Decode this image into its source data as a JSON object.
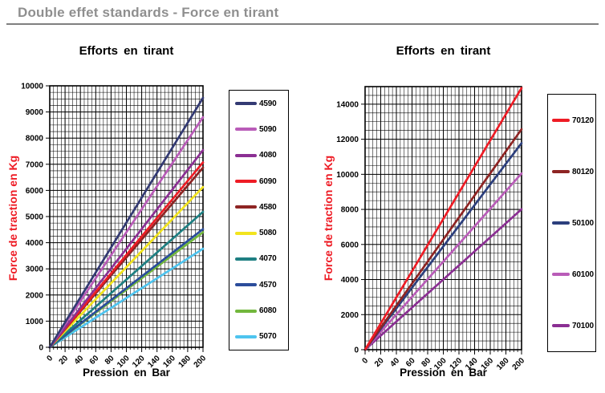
{
  "page_title": "Double effet standards - Force en tirant",
  "colors": {
    "header_text": "#8f8f8f",
    "header_rule": "#7f7f7f",
    "y_axis_title": "#ee1c25",
    "grid": "#000000"
  },
  "chart_data": [
    {
      "type": "line",
      "title": "Efforts en tirant",
      "xlabel": "Pression en Bar",
      "ylabel": "Force de traction en Kg",
      "x": [
        0,
        200
      ],
      "xlim": [
        0,
        200
      ],
      "ylim": [
        0,
        10000
      ],
      "x_ticks": [
        0,
        20,
        40,
        60,
        80,
        100,
        120,
        140,
        160,
        180,
        200
      ],
      "y_ticks": [
        0,
        1000,
        2000,
        3000,
        4000,
        5000,
        6000,
        7000,
        8000,
        9000,
        10000
      ],
      "x_minor_step": 5,
      "y_minor_step": 250,
      "grid": true,
      "legend_position": "right",
      "series": [
        {
          "name": "4590",
          "color": "#333a73",
          "values": [
            0,
            9540
          ]
        },
        {
          "name": "5090",
          "color": "#b95cb8",
          "values": [
            0,
            8800
          ]
        },
        {
          "name": "4080",
          "color": "#8b2f93",
          "values": [
            0,
            7540
          ]
        },
        {
          "name": "6090",
          "color": "#ee1c25",
          "values": [
            0,
            7070
          ]
        },
        {
          "name": "4580",
          "color": "#8e2423",
          "values": [
            0,
            6870
          ]
        },
        {
          "name": "5080",
          "color": "#f2e41e",
          "values": [
            0,
            6130
          ]
        },
        {
          "name": "4070",
          "color": "#1e7f82",
          "values": [
            0,
            5180
          ]
        },
        {
          "name": "4570",
          "color": "#2b4d9b",
          "values": [
            0,
            4520
          ]
        },
        {
          "name": "6080",
          "color": "#72b73c",
          "values": [
            0,
            4400
          ]
        },
        {
          "name": "5070",
          "color": "#4ec4ef",
          "values": [
            0,
            3770
          ]
        }
      ]
    },
    {
      "type": "line",
      "title": "Efforts en tirant",
      "xlabel": "Pression en Bar",
      "ylabel": "Force de traction en Kg",
      "x": [
        0,
        200
      ],
      "xlim": [
        0,
        200
      ],
      "ylim": [
        0,
        15000
      ],
      "x_ticks": [
        0,
        20,
        40,
        60,
        80,
        100,
        120,
        140,
        160,
        180,
        200
      ],
      "y_ticks": [
        0,
        2000,
        4000,
        6000,
        8000,
        10000,
        12000,
        14000
      ],
      "x_minor_step": 5,
      "y_minor_step": 500,
      "grid": true,
      "legend_position": "right",
      "series": [
        {
          "name": "70120",
          "color": "#ee1c25",
          "values": [
            0,
            14920
          ]
        },
        {
          "name": "80120",
          "color": "#8e2423",
          "values": [
            0,
            12570
          ]
        },
        {
          "name": "50100",
          "color": "#2c3f7d",
          "values": [
            0,
            11780
          ]
        },
        {
          "name": "60100",
          "color": "#b95cb8",
          "values": [
            0,
            10050
          ]
        },
        {
          "name": "70100",
          "color": "#8b2f93",
          "values": [
            0,
            8010
          ]
        }
      ]
    }
  ]
}
